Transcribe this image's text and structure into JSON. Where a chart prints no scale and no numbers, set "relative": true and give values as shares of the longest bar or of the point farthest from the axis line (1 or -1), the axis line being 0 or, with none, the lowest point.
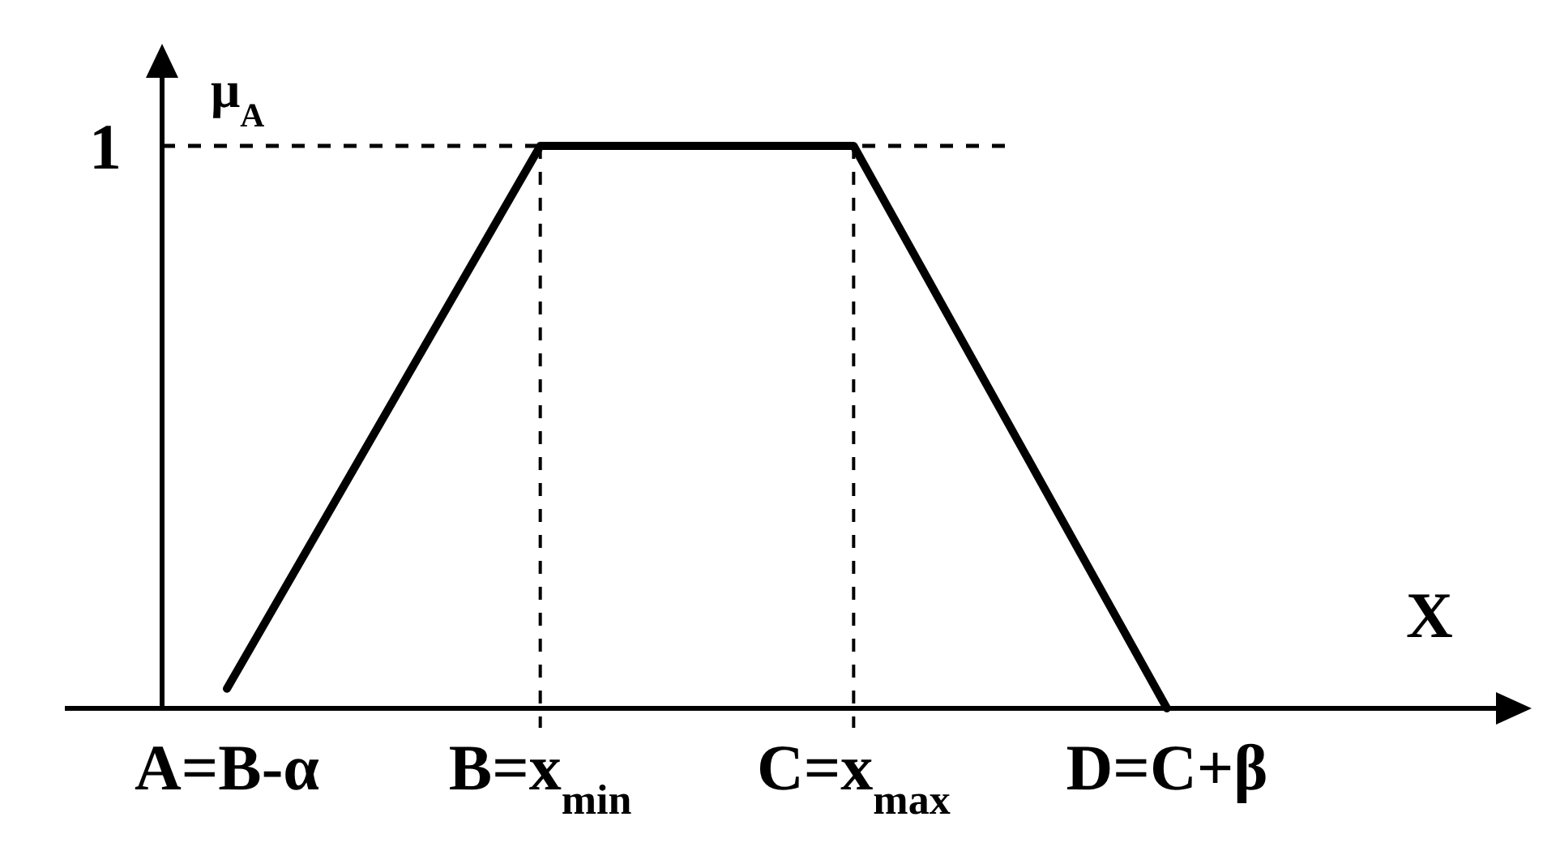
{
  "chart_data": {
    "type": "line",
    "relative": true,
    "categories": [
      "A=B-α",
      "B=x$_{min}$",
      "C=x$_{max}$",
      "D=C+β"
    ],
    "series": [
      {
        "color": "#000000",
        "values": [
          0.035,
          1,
          1,
          0
        ]
      }
    ],
    "ylabel": "μ$_{A}$",
    "xlabel": "X",
    "marker": "none",
    "line_style": "solid",
    "ref_lines": [
      {
        "axis": "y",
        "value": 1,
        "label": "1",
        "line_style": "dashed",
        "color": "#000000"
      },
      {
        "axis": "x",
        "value": "B=x$_{min}$",
        "label": null,
        "line_style": "dashed",
        "color": "#000000"
      },
      {
        "axis": "x",
        "value": "C=x$_{max}$",
        "label": null,
        "line_style": "dashed",
        "color": "#000000"
      }
    ]
  }
}
